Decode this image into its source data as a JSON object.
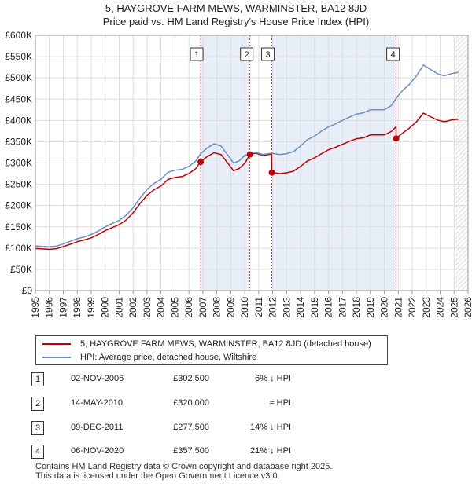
{
  "chart_data": {
    "type": "line",
    "title": "5, HAYGROVE FARM MEWS, WARMINSTER, BA12 8JD",
    "subtitle": "Price paid vs. HM Land Registry's House Price Index (HPI)",
    "xlim": [
      1995,
      2026
    ],
    "ylim": [
      0,
      600000
    ],
    "x_ticks": [
      "1995",
      "1996",
      "1997",
      "1998",
      "1999",
      "2000",
      "2001",
      "2002",
      "2003",
      "2004",
      "2005",
      "2006",
      "2007",
      "2008",
      "2009",
      "2010",
      "2011",
      "2012",
      "2013",
      "2014",
      "2015",
      "2016",
      "2017",
      "2018",
      "2019",
      "2020",
      "2021",
      "2022",
      "2023",
      "2024",
      "2025",
      "2026"
    ],
    "y_ticks": [
      {
        "value": 0,
        "label": "£0"
      },
      {
        "value": 50000,
        "label": "£50K"
      },
      {
        "value": 100000,
        "label": "£100K"
      },
      {
        "value": 150000,
        "label": "£150K"
      },
      {
        "value": 200000,
        "label": "£200K"
      },
      {
        "value": 250000,
        "label": "£250K"
      },
      {
        "value": 300000,
        "label": "£300K"
      },
      {
        "value": 350000,
        "label": "£350K"
      },
      {
        "value": 400000,
        "label": "£400K"
      },
      {
        "value": 450000,
        "label": "£450K"
      },
      {
        "value": 500000,
        "label": "£500K"
      },
      {
        "value": 550000,
        "label": "£550K"
      },
      {
        "value": 600000,
        "label": "£600K"
      }
    ],
    "grid": true,
    "shaded_spans": [
      [
        2006.84,
        2010.37
      ],
      [
        2011.94,
        2020.85
      ]
    ],
    "future_hatch_from": 2025.1,
    "series": [
      {
        "name": "HPI: Average price, detached house, Wiltshire",
        "color": "#6a8fc5",
        "points": [
          [
            1995.0,
            105000
          ],
          [
            1995.5,
            104000
          ],
          [
            1996.0,
            103000
          ],
          [
            1996.5,
            104500
          ],
          [
            1997.0,
            110000
          ],
          [
            1997.5,
            116000
          ],
          [
            1998.0,
            122000
          ],
          [
            1998.5,
            126000
          ],
          [
            1999.0,
            132000
          ],
          [
            1999.5,
            140000
          ],
          [
            2000.0,
            150000
          ],
          [
            2000.5,
            158000
          ],
          [
            2001.0,
            165000
          ],
          [
            2001.5,
            177000
          ],
          [
            2002.0,
            195000
          ],
          [
            2002.5,
            218000
          ],
          [
            2003.0,
            238000
          ],
          [
            2003.5,
            252000
          ],
          [
            2004.0,
            262000
          ],
          [
            2004.5,
            278000
          ],
          [
            2005.0,
            283000
          ],
          [
            2005.5,
            285000
          ],
          [
            2006.0,
            292000
          ],
          [
            2006.5,
            305000
          ],
          [
            2006.84,
            322000
          ],
          [
            2007.3,
            335000
          ],
          [
            2007.8,
            345000
          ],
          [
            2008.3,
            340000
          ],
          [
            2008.8,
            318000
          ],
          [
            2009.2,
            300000
          ],
          [
            2009.6,
            305000
          ],
          [
            2010.0,
            318000
          ],
          [
            2010.37,
            322000
          ],
          [
            2010.8,
            325000
          ],
          [
            2011.3,
            320000
          ],
          [
            2011.94,
            323000
          ],
          [
            2012.5,
            320000
          ],
          [
            2013.0,
            322000
          ],
          [
            2013.5,
            327000
          ],
          [
            2014.0,
            340000
          ],
          [
            2014.5,
            355000
          ],
          [
            2015.0,
            363000
          ],
          [
            2015.5,
            375000
          ],
          [
            2016.0,
            385000
          ],
          [
            2016.5,
            392000
          ],
          [
            2017.0,
            400000
          ],
          [
            2017.5,
            408000
          ],
          [
            2018.0,
            415000
          ],
          [
            2018.5,
            418000
          ],
          [
            2019.0,
            425000
          ],
          [
            2019.5,
            425000
          ],
          [
            2020.0,
            425000
          ],
          [
            2020.5,
            435000
          ],
          [
            2020.85,
            452000
          ],
          [
            2021.3,
            470000
          ],
          [
            2021.8,
            485000
          ],
          [
            2022.3,
            505000
          ],
          [
            2022.8,
            530000
          ],
          [
            2023.3,
            520000
          ],
          [
            2023.8,
            510000
          ],
          [
            2024.3,
            505000
          ],
          [
            2024.8,
            510000
          ],
          [
            2025.3,
            513000
          ]
        ]
      },
      {
        "name": "5, HAYGROVE FARM MEWS, WARMINSTER, BA12 8JD (detached house)",
        "color": "#c00000",
        "points": [
          [
            1995.0,
            99000
          ],
          [
            1995.5,
            98000
          ],
          [
            1996.0,
            97000
          ],
          [
            1996.5,
            98500
          ],
          [
            1997.0,
            103500
          ],
          [
            1997.5,
            109000
          ],
          [
            1998.0,
            115000
          ],
          [
            1998.5,
            119000
          ],
          [
            1999.0,
            124000
          ],
          [
            1999.5,
            132000
          ],
          [
            2000.0,
            141000
          ],
          [
            2000.5,
            148000
          ],
          [
            2001.0,
            155000
          ],
          [
            2001.5,
            166000
          ],
          [
            2002.0,
            183000
          ],
          [
            2002.5,
            205000
          ],
          [
            2003.0,
            224000
          ],
          [
            2003.5,
            237000
          ],
          [
            2004.0,
            246000
          ],
          [
            2004.5,
            261000
          ],
          [
            2005.0,
            266000
          ],
          [
            2005.5,
            268000
          ],
          [
            2006.0,
            275000
          ],
          [
            2006.5,
            287000
          ],
          [
            2006.84,
            302500
          ],
          [
            2007.3,
            315000
          ],
          [
            2007.8,
            324000
          ],
          [
            2008.3,
            320000
          ],
          [
            2008.8,
            299000
          ],
          [
            2009.2,
            282000
          ],
          [
            2009.6,
            287000
          ],
          [
            2010.0,
            299000
          ],
          [
            2010.37,
            320000
          ],
          [
            2010.8,
            323000
          ],
          [
            2011.3,
            318000
          ],
          [
            2011.93,
            321000
          ],
          [
            2011.94,
            277500
          ],
          [
            2012.5,
            275000
          ],
          [
            2013.0,
            277000
          ],
          [
            2013.5,
            281000
          ],
          [
            2014.0,
            292000
          ],
          [
            2014.5,
            305000
          ],
          [
            2015.0,
            312000
          ],
          [
            2015.5,
            322000
          ],
          [
            2016.0,
            331000
          ],
          [
            2016.5,
            337000
          ],
          [
            2017.0,
            344000
          ],
          [
            2017.5,
            351000
          ],
          [
            2018.0,
            357000
          ],
          [
            2018.5,
            359000
          ],
          [
            2019.0,
            366000
          ],
          [
            2019.5,
            366000
          ],
          [
            2020.0,
            366000
          ],
          [
            2020.5,
            374000
          ],
          [
            2020.84,
            385000
          ],
          [
            2020.85,
            357500
          ],
          [
            2021.3,
            370000
          ],
          [
            2021.8,
            382000
          ],
          [
            2022.3,
            397000
          ],
          [
            2022.8,
            417000
          ],
          [
            2023.3,
            409000
          ],
          [
            2023.8,
            401000
          ],
          [
            2024.3,
            397000
          ],
          [
            2024.8,
            401000
          ],
          [
            2025.3,
            403000
          ]
        ]
      }
    ],
    "sales": [
      {
        "id": "1",
        "x": 2006.84,
        "value": 302500
      },
      {
        "id": "2",
        "x": 2010.37,
        "value": 320000
      },
      {
        "id": "3",
        "x": 2011.94,
        "value": 277500
      },
      {
        "id": "4",
        "x": 2020.85,
        "value": 357500
      }
    ]
  },
  "legend": {
    "property_label": "5, HAYGROVE FARM MEWS, WARMINSTER, BA12 8JD (detached house)",
    "hpi_label": "HPI: Average price, detached house, Wiltshire",
    "property_color": "#c00000",
    "hpi_color": "#6a8fc5"
  },
  "sales_table": [
    {
      "num": "1",
      "date": "02-NOV-2006",
      "price": "£302,500",
      "delta": "6% ↓ HPI"
    },
    {
      "num": "2",
      "date": "14-MAY-2010",
      "price": "£320,000",
      "delta": "≈ HPI"
    },
    {
      "num": "3",
      "date": "09-DEC-2011",
      "price": "£277,500",
      "delta": "14% ↓ HPI"
    },
    {
      "num": "4",
      "date": "06-NOV-2020",
      "price": "£357,500",
      "delta": "21% ↓ HPI"
    }
  ],
  "footer": {
    "line1": "Contains HM Land Registry data © Crown copyright and database right 2025.",
    "line2": "This data is licensed under the Open Government Licence v3.0."
  }
}
